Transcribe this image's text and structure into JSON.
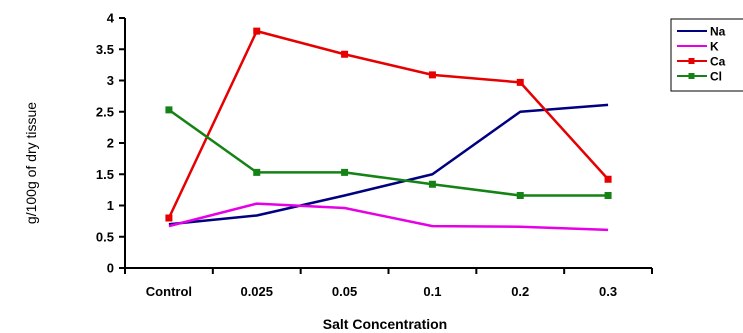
{
  "chart_data": {
    "type": "line",
    "categories": [
      "Control",
      "0.025",
      "0.05",
      "0.1",
      "0.2",
      "0.3"
    ],
    "series": [
      {
        "name": "Na",
        "color": "#000080",
        "marker": "none",
        "values": [
          0.7,
          0.84,
          1.16,
          1.5,
          2.5,
          2.61
        ]
      },
      {
        "name": "K",
        "color": "#e600e6",
        "marker": "none",
        "values": [
          0.67,
          1.03,
          0.96,
          0.67,
          0.66,
          0.61
        ]
      },
      {
        "name": "Ca",
        "color": "#e60000",
        "marker": "square",
        "values": [
          0.8,
          3.79,
          3.42,
          3.09,
          2.97,
          1.42
        ]
      },
      {
        "name": "Cl",
        "color": "#148214",
        "marker": "square",
        "values": [
          2.53,
          1.53,
          1.53,
          1.34,
          1.16,
          1.16
        ]
      }
    ],
    "xlabel": "Salt Concentration",
    "ylabel": "g/100g of dry tissue",
    "ylim": [
      0,
      4
    ],
    "yticks": [
      "0",
      "0.5",
      "1",
      "1.5",
      "2",
      "2.5",
      "3",
      "3.5",
      "4"
    ],
    "grid": false,
    "legend": "top-right"
  }
}
